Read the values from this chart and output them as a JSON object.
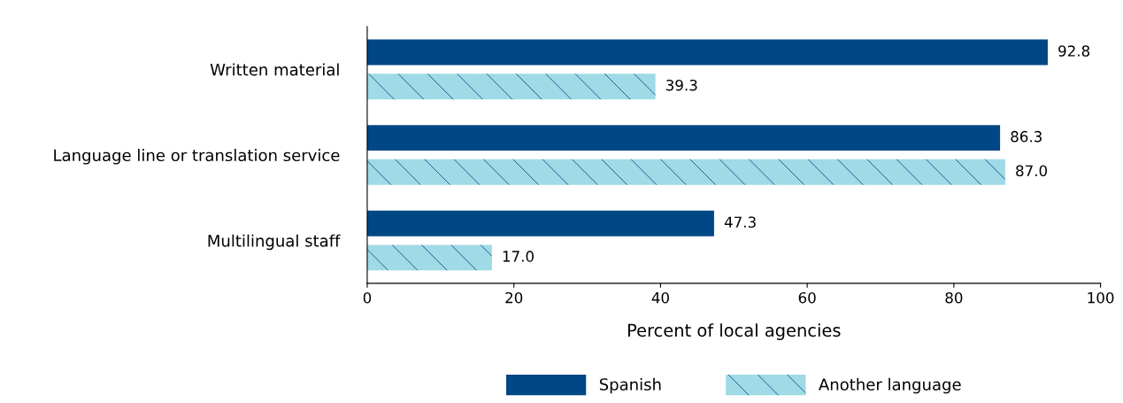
{
  "chart_data": {
    "type": "bar",
    "orientation": "horizontal",
    "categories": [
      "Written material",
      "Language line or translation service",
      "Multilingual staff"
    ],
    "series": [
      {
        "name": "Spanish",
        "color": "#004785",
        "values": [
          92.8,
          86.3,
          47.3
        ],
        "value_labels": [
          "92.8",
          "86.3",
          "47.3"
        ]
      },
      {
        "name": "Another language",
        "color": "#9fdae6",
        "values": [
          39.3,
          87.0,
          17.0
        ],
        "value_labels": [
          "39.3",
          "87.0",
          "17.0"
        ]
      }
    ],
    "xlabel": "Percent of local agencies",
    "xlim": [
      0,
      100
    ],
    "xticks": [
      0,
      20,
      40,
      60,
      80,
      100
    ],
    "legend": "bottom",
    "grid": false
  }
}
